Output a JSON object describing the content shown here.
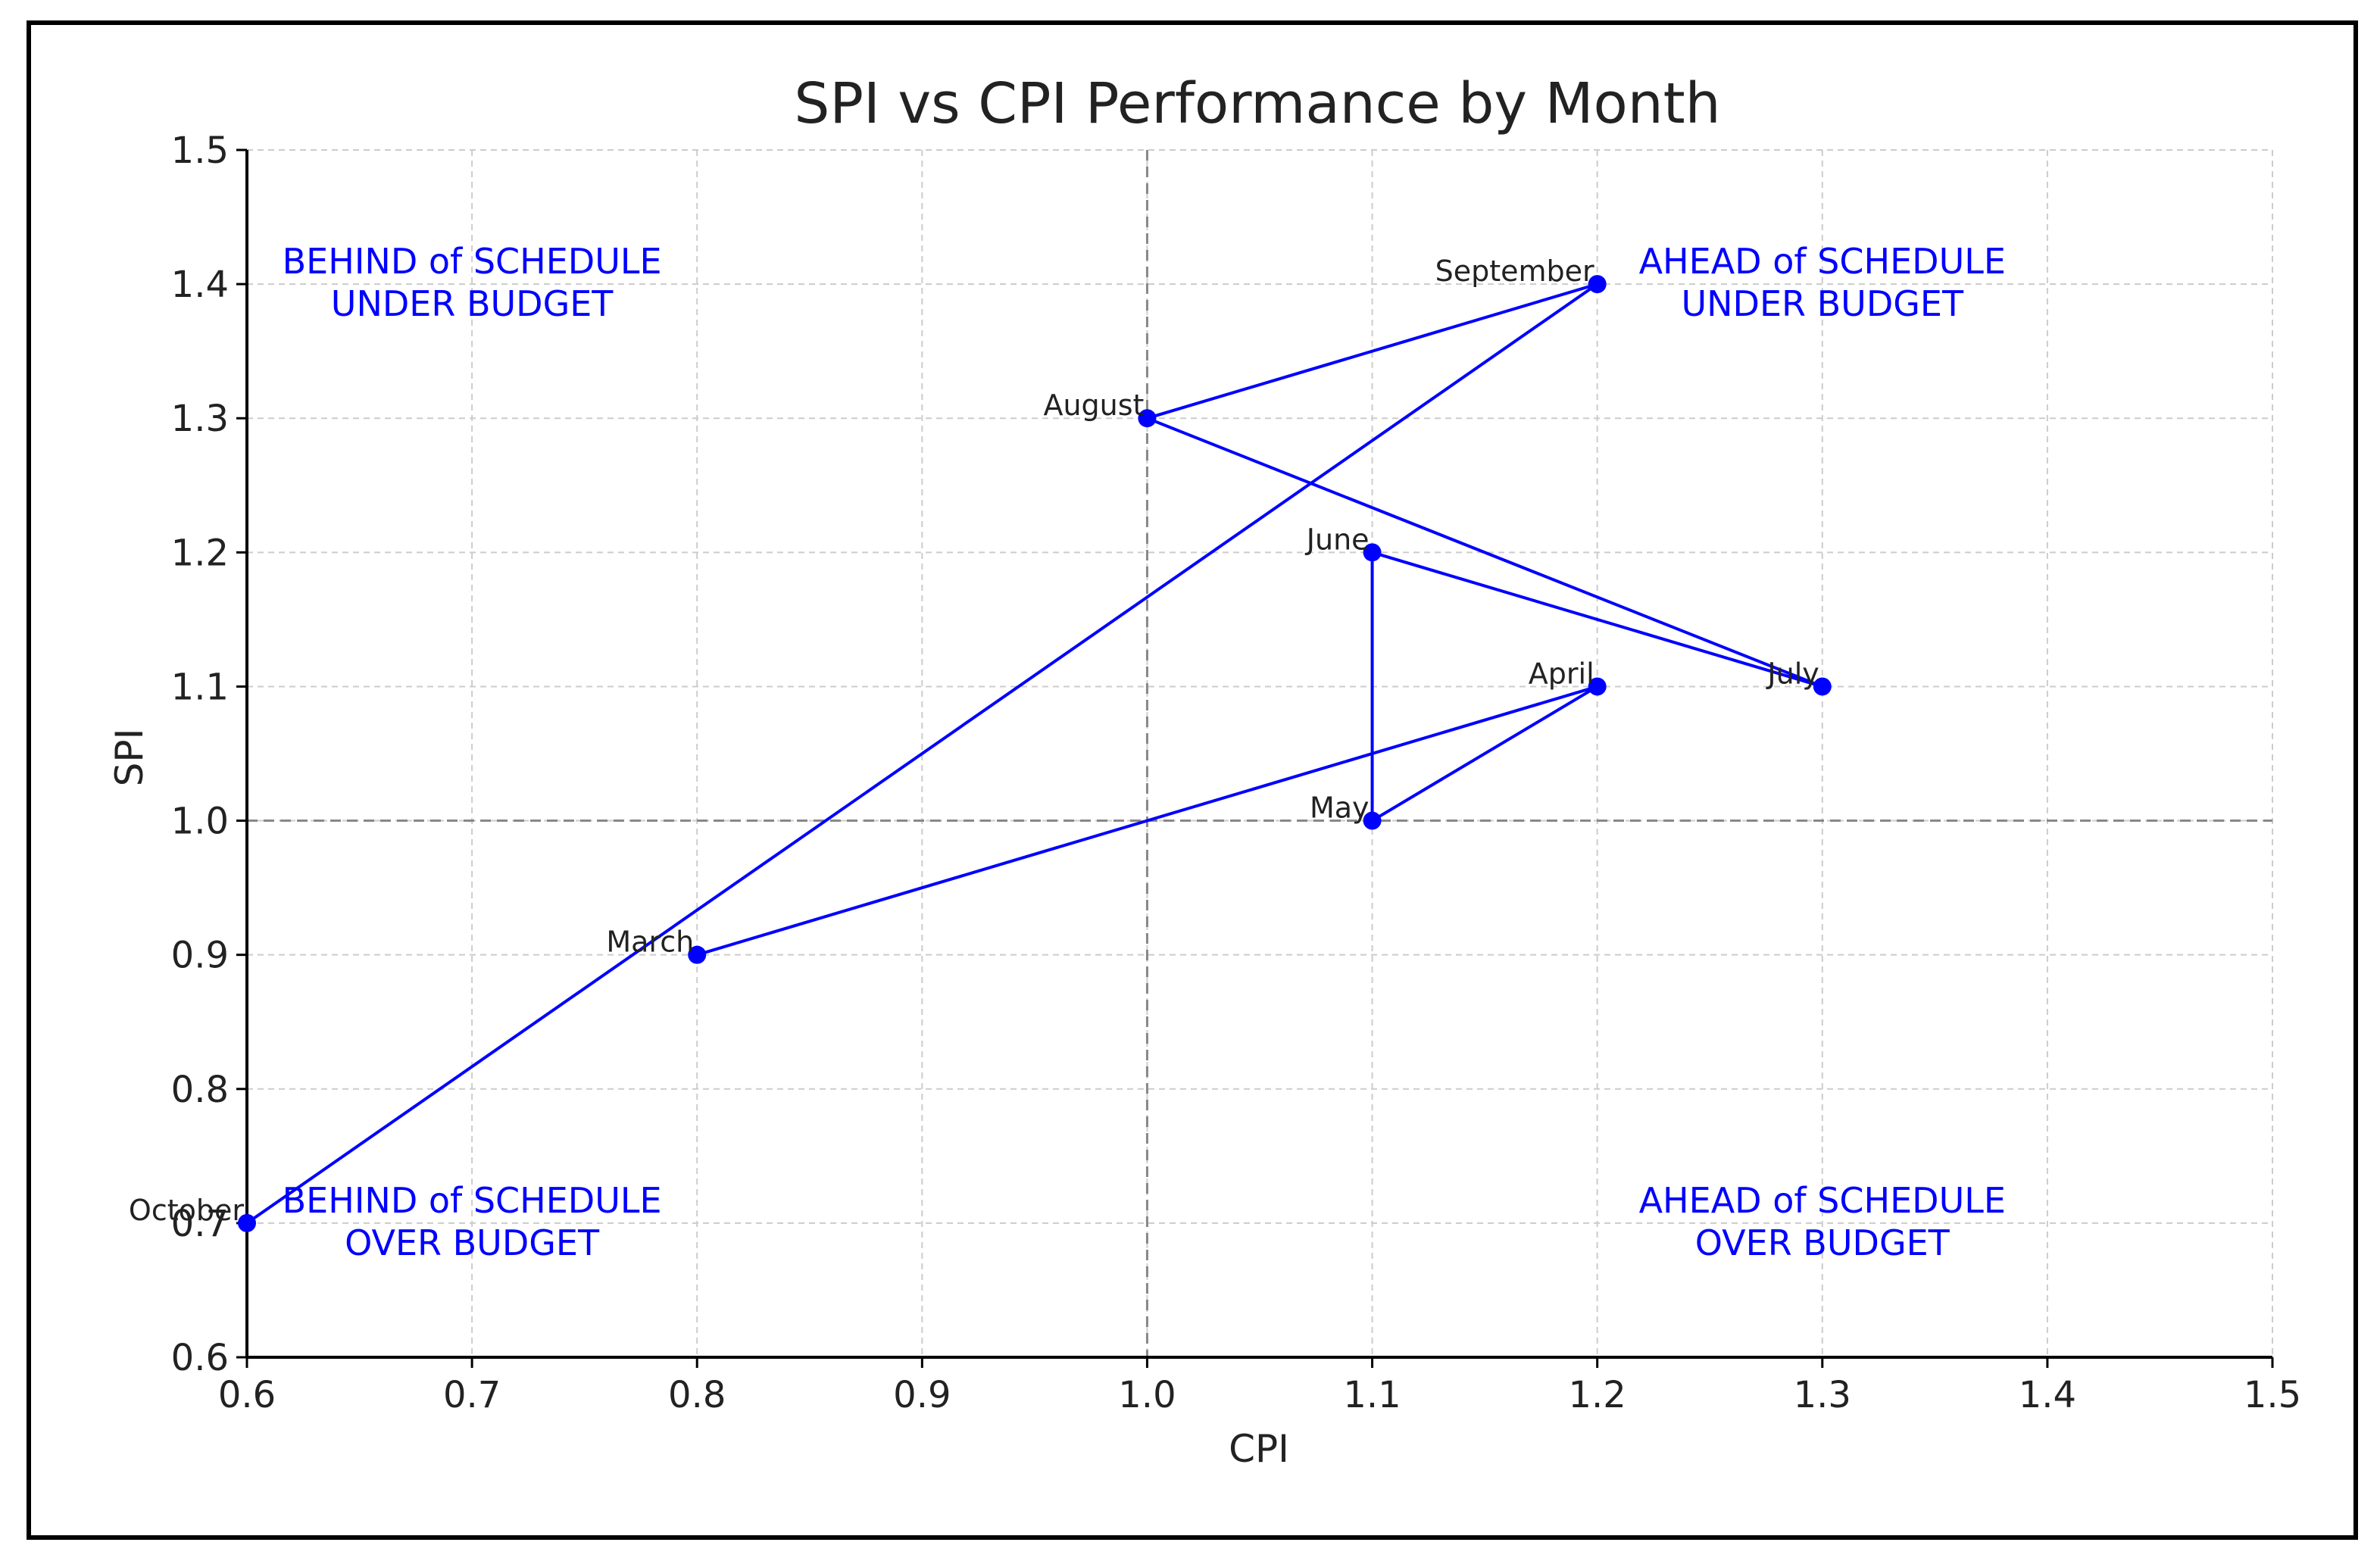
{
  "chart_data": {
    "type": "line",
    "title": "SPI vs CPI Performance by Month",
    "xlabel": "CPI",
    "ylabel": "SPI",
    "xlim": [
      0.6,
      1.5
    ],
    "ylim": [
      0.6,
      1.5
    ],
    "grid": true,
    "x_ticks": [
      "0.6",
      "0.7",
      "0.8",
      "0.9",
      "1.0",
      "1.1",
      "1.2",
      "1.3",
      "1.4",
      "1.5"
    ],
    "y_ticks": [
      "0.6",
      "0.7",
      "0.8",
      "0.9",
      "1.0",
      "1.1",
      "1.2",
      "1.3",
      "1.4",
      "1.5"
    ],
    "reference_lines": {
      "x": 1.0,
      "y": 1.0
    },
    "series": [
      {
        "name": "SPI vs CPI",
        "color": "#0000ff",
        "points": [
          {
            "label": "March",
            "x": 0.8,
            "y": 0.9
          },
          {
            "label": "April",
            "x": 1.2,
            "y": 1.1
          },
          {
            "label": "May",
            "x": 1.1,
            "y": 1.0
          },
          {
            "label": "June",
            "x": 1.1,
            "y": 1.2
          },
          {
            "label": "July",
            "x": 1.3,
            "y": 1.1
          },
          {
            "label": "August",
            "x": 1.0,
            "y": 1.3
          },
          {
            "label": "September",
            "x": 1.2,
            "y": 1.4
          },
          {
            "label": "October",
            "x": 0.6,
            "y": 0.7
          }
        ]
      }
    ],
    "quadrant_labels": [
      {
        "line1": "BEHIND of SCHEDULE",
        "line2": "UNDER BUDGET",
        "x": 0.7,
        "y": 1.4
      },
      {
        "line1": "AHEAD of SCHEDULE",
        "line2": "UNDER BUDGET",
        "x": 1.3,
        "y": 1.4
      },
      {
        "line1": "BEHIND of SCHEDULE",
        "line2": "OVER BUDGET",
        "x": 0.7,
        "y": 0.7
      },
      {
        "line1": "AHEAD of SCHEDULE",
        "line2": "OVER BUDGET",
        "x": 1.3,
        "y": 0.7
      }
    ],
    "colors": {
      "series": "#0000ff",
      "annotation": "#0000ff",
      "text": "#222222",
      "grid": "#cccccc",
      "reference": "#888888"
    }
  }
}
